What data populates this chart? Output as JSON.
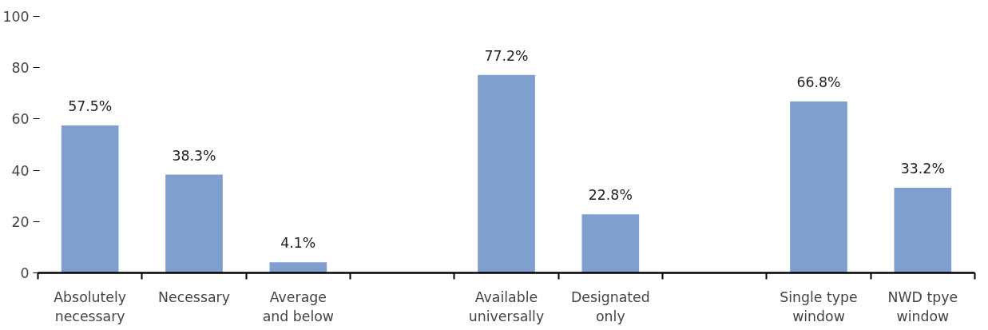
{
  "chart_data": {
    "type": "bar",
    "categories": [
      "Absolutely\nnecessary",
      "Necessary",
      "Average\nand below",
      null,
      "Available\nuniversally",
      "Designated\nonly",
      null,
      "Single type\nwindow",
      "NWD tpye\nwindow"
    ],
    "values": [
      57.5,
      38.3,
      4.1,
      null,
      77.2,
      22.8,
      null,
      66.8,
      33.2
    ],
    "value_labels": [
      "57.5%",
      "38.3%",
      "4.1%",
      null,
      "77.2%",
      "22.8%",
      null,
      "66.8%",
      "33.2%"
    ],
    "color": "#7f9fcf",
    "ylim": [
      0,
      100
    ],
    "yticks": [
      0,
      20,
      40,
      60,
      80,
      100
    ],
    "grid": false
  }
}
